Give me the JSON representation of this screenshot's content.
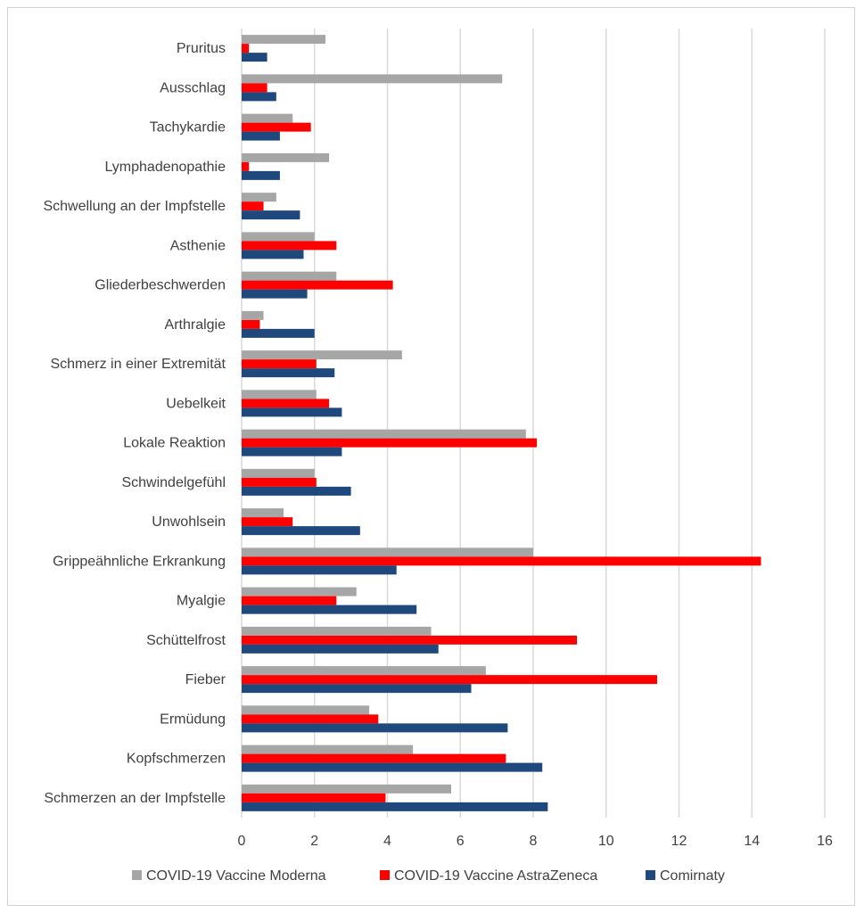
{
  "chart_data": {
    "type": "bar",
    "orientation": "horizontal",
    "title": "",
    "xlabel": "",
    "ylabel": "",
    "xlim": [
      0,
      16
    ],
    "xticks": [
      0,
      2,
      4,
      6,
      8,
      10,
      12,
      14,
      16
    ],
    "grid": "vertical",
    "legend_position": "bottom",
    "categories": [
      "Pruritus",
      "Ausschlag",
      "Tachykardie",
      "Lymphadenopathie",
      "Schwellung an der Impfstelle",
      "Asthenie",
      "Gliederbeschwerden",
      "Arthralgie",
      "Schmerz in einer Extremität",
      "Uebelkeit",
      "Lokale Reaktion",
      "Schwindelgefühl",
      "Unwohlsein",
      "Grippeähnliche Erkrankung",
      "Myalgie",
      "Schüttelfrost",
      "Fieber",
      "Ermüdung",
      "Kopfschmerzen",
      "Schmerzen an der Impfstelle"
    ],
    "series": [
      {
        "name": "COVID-19 Vaccine Moderna",
        "color": "#a6a6a6",
        "values": [
          2.3,
          7.15,
          1.4,
          2.4,
          0.95,
          2.0,
          2.6,
          0.6,
          4.4,
          2.05,
          7.8,
          2.0,
          1.15,
          8.0,
          3.15,
          5.2,
          6.7,
          3.5,
          4.7,
          5.75
        ]
      },
      {
        "name": "COVID-19 Vaccine AstraZeneca",
        "color": "#ff0000",
        "values": [
          0.2,
          0.7,
          1.9,
          0.2,
          0.6,
          2.6,
          4.15,
          0.5,
          2.05,
          2.4,
          8.1,
          2.05,
          1.4,
          14.25,
          2.6,
          9.2,
          11.4,
          3.75,
          7.25,
          3.95
        ]
      },
      {
        "name": "Comirnaty",
        "color": "#1f497d",
        "values": [
          0.7,
          0.95,
          1.05,
          1.05,
          1.6,
          1.7,
          1.8,
          2.0,
          2.55,
          2.75,
          2.75,
          3.0,
          3.25,
          4.25,
          4.8,
          5.4,
          6.3,
          7.3,
          8.25,
          8.4
        ]
      }
    ]
  }
}
